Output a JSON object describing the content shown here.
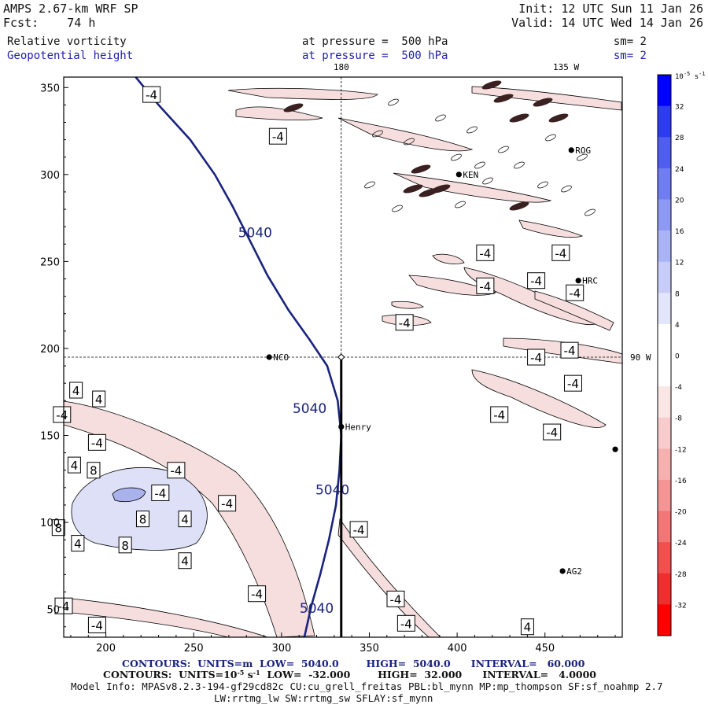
{
  "header": {
    "line1_left": "AMPS 2.67-km WRF SP",
    "line1_right": "Init: 12 UTC Sun 11 Jan 26",
    "line2_left": "Fcst:    74 h",
    "line2_right": "Valid: 14 UTC Wed 14 Jan 26",
    "field1_name": "Relative vorticity",
    "field1_level": "at pressure =  500 hPa",
    "field1_smooth": "sm= 2",
    "field2_name": "Geopotential height",
    "field2_level": "at pressure =  500 hPa",
    "field2_smooth": "sm= 2"
  },
  "footer": {
    "contours1": "CONTOURS:  UNITS=m  LOW=  5040.0        HIGH=  5040.0      INTERVAL=   60.000",
    "contours2_prefix": "CONTOURS:  UNITS=10",
    "contours2_exp": "-5",
    "contours2_mid": " s",
    "contours2_exp2": "-1",
    "contours2_suffix": "  LOW=  -32.000        HIGH=  32.000      INTERVAL=   4.0000",
    "model_info": "Model Info: MPASv8.2.3-194-gf29cd82c CU:cu_grell_freitas PBL:bl_mynn MP:mp_thompson SF:sf_noahmp 2.7",
    "model_info2": "LW:rrtmg_lw SW:rrtmg_sw SFLAY:sf_mynn"
  },
  "colors": {
    "height_contour": "#1a237e",
    "title_blue": "#2222aa",
    "neg_fill": "#f6dede",
    "pos_fill": "#dde0f7",
    "pos_fill_strong": "#aab2ee"
  },
  "chart_data": {
    "type": "contour-map",
    "x_axis": {
      "range": [
        176,
        494
      ],
      "ticks": [
        200,
        250,
        300,
        350,
        400,
        450
      ]
    },
    "y_axis": {
      "range": [
        34,
        356
      ],
      "ticks": [
        50,
        100,
        150,
        200,
        250,
        300,
        350
      ]
    },
    "meridian_labels": [
      {
        "text": "180",
        "x": 334
      },
      {
        "text": "135 W",
        "x": 462
      }
    ],
    "parallel_labels": [
      {
        "text": "90 W",
        "y": 195
      }
    ],
    "reference_lines": {
      "meridian_x": 334,
      "parallel_y": 195
    },
    "cross_section": {
      "x": 334,
      "y_from": 34,
      "y_to": 195
    },
    "stations": [
      {
        "name": "NCO",
        "x": 293,
        "y": 195
      },
      {
        "name": "Henry",
        "x": 334,
        "y": 155
      },
      {
        "name": "KEN",
        "x": 401,
        "y": 300
      },
      {
        "name": "ROG",
        "x": 465,
        "y": 314
      },
      {
        "name": "HRC",
        "x": 469,
        "y": 239
      },
      {
        "name": "AG2",
        "x": 460,
        "y": 72
      },
      {
        "name": "",
        "x": 490,
        "y": 142
      }
    ],
    "height_contour": {
      "value": 5040,
      "labels": [
        {
          "text": "5040",
          "x": 285,
          "y": 264
        },
        {
          "text": "5040",
          "x": 316,
          "y": 163
        },
        {
          "text": "5040",
          "x": 329,
          "y": 116
        },
        {
          "text": "5040",
          "x": 320,
          "y": 48
        }
      ]
    },
    "vorticity_labels": [
      {
        "text": "-4",
        "x": 226,
        "y": 346
      },
      {
        "text": "-4",
        "x": 298,
        "y": 322
      },
      {
        "text": "-4",
        "x": 416,
        "y": 255
      },
      {
        "text": "-4",
        "x": 459,
        "y": 255
      },
      {
        "text": "-4",
        "x": 416,
        "y": 236
      },
      {
        "text": "-4",
        "x": 445,
        "y": 239
      },
      {
        "text": "-4",
        "x": 467,
        "y": 232
      },
      {
        "text": "-4",
        "x": 370,
        "y": 215
      },
      {
        "text": "-4",
        "x": 464,
        "y": 199
      },
      {
        "text": "-4",
        "x": 445,
        "y": 195
      },
      {
        "text": "-4",
        "x": 466,
        "y": 180
      },
      {
        "text": "-4",
        "x": 424,
        "y": 162
      },
      {
        "text": "-4",
        "x": 454,
        "y": 152
      },
      {
        "text": "4",
        "x": 183,
        "y": 176
      },
      {
        "text": "4",
        "x": 196,
        "y": 171
      },
      {
        "text": "-4",
        "x": 175,
        "y": 162
      },
      {
        "text": "-4",
        "x": 195,
        "y": 146
      },
      {
        "text": "4",
        "x": 182,
        "y": 133
      },
      {
        "text": "8",
        "x": 193,
        "y": 130
      },
      {
        "text": "-4",
        "x": 240,
        "y": 130
      },
      {
        "text": "-4",
        "x": 231,
        "y": 117
      },
      {
        "text": "-4",
        "x": 269,
        "y": 111
      },
      {
        "text": "8",
        "x": 221,
        "y": 102
      },
      {
        "text": "4",
        "x": 245,
        "y": 102
      },
      {
        "text": "8",
        "x": 173,
        "y": 97
      },
      {
        "text": "4",
        "x": 184,
        "y": 88
      },
      {
        "text": "8",
        "x": 211,
        "y": 87
      },
      {
        "text": "4",
        "x": 245,
        "y": 78
      },
      {
        "text": "-4",
        "x": 344,
        "y": 96
      },
      {
        "text": "-4",
        "x": 286,
        "y": 59
      },
      {
        "text": "-4",
        "x": 365,
        "y": 56
      },
      {
        "text": "-4",
        "x": 176,
        "y": 52
      },
      {
        "text": "-4",
        "x": 195,
        "y": 41
      },
      {
        "text": "-4",
        "x": 371,
        "y": 42
      },
      {
        "text": "4",
        "x": 440,
        "y": 40
      }
    ],
    "colorbar": {
      "unit": "10^-5 s^-1",
      "unit_base": "10",
      "unit_exp": "-5",
      "unit_s": " s",
      "unit_exp2": "-1",
      "levels": [
        32,
        28,
        24,
        20,
        16,
        12,
        8,
        4,
        0,
        -4,
        -8,
        -12,
        -16,
        -20,
        -24,
        -28,
        -32
      ],
      "colors": [
        "#0000ff",
        "#2d3cf0",
        "#4f5ef1",
        "#6f7cf2",
        "#8e99f4",
        "#aab3f5",
        "#c7ccf8",
        "#e2e5fb",
        "#ffffff",
        "#ffffff",
        "#fbe6e6",
        "#f8cccc",
        "#f6b0b0",
        "#f59494",
        "#f37575",
        "#f34f4f",
        "#f12e2e",
        "#ff0000"
      ]
    }
  }
}
